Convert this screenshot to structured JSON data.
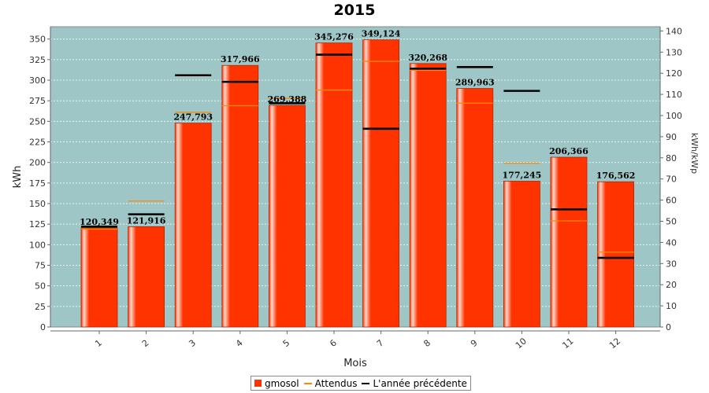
{
  "colors": {
    "plot_background": "#9ec6c6",
    "bar": "#ff3300",
    "bar_highlight": "#ffd9cc",
    "expected": "#ff8800",
    "previous_year": "#000000",
    "grid": "#e8f2f2"
  },
  "chart_data": {
    "type": "bar",
    "title": "2015",
    "xlabel": "Mois",
    "ylabel": "kWh",
    "y2label": "kWh/kWp",
    "categories": [
      "1",
      "2",
      "3",
      "4",
      "5",
      "6",
      "7",
      "8",
      "9",
      "10",
      "11",
      "12"
    ],
    "ylim": [
      0,
      365
    ],
    "y2lim": [
      0,
      142
    ],
    "yticks": [
      "0",
      "25",
      "50",
      "75",
      "100",
      "125",
      "150",
      "175",
      "200",
      "225",
      "250",
      "275",
      "300",
      "325",
      "350"
    ],
    "y2ticks": [
      "0",
      "10",
      "20",
      "30",
      "40",
      "50",
      "60",
      "70",
      "80",
      "90",
      "100",
      "110",
      "120",
      "130",
      "140"
    ],
    "series": [
      {
        "name": "gmosol",
        "type": "bar",
        "values": [
          120.349,
          121.916,
          247.793,
          317.966,
          269.388,
          345.276,
          349.124,
          320.268,
          289.963,
          177.245,
          206.366,
          176.562
        ],
        "labels": [
          "120,349",
          "121,916",
          "247,793",
          "317,966",
          "269,388",
          "345,276",
          "349,124",
          "320,268",
          "289,963",
          "177,245",
          "206,366",
          "176,562"
        ]
      },
      {
        "name": "Attendus",
        "type": "marker",
        "values": [
          119,
          153,
          261,
          269,
          278,
          288,
          323,
          312,
          272,
          199,
          129,
          91
        ]
      },
      {
        "name": "L'année précédente",
        "type": "marker",
        "values": [
          122,
          137,
          306,
          298,
          272,
          331,
          241,
          314,
          316,
          287,
          143,
          84
        ]
      }
    ],
    "grid": true,
    "legend_position": "bottom"
  }
}
